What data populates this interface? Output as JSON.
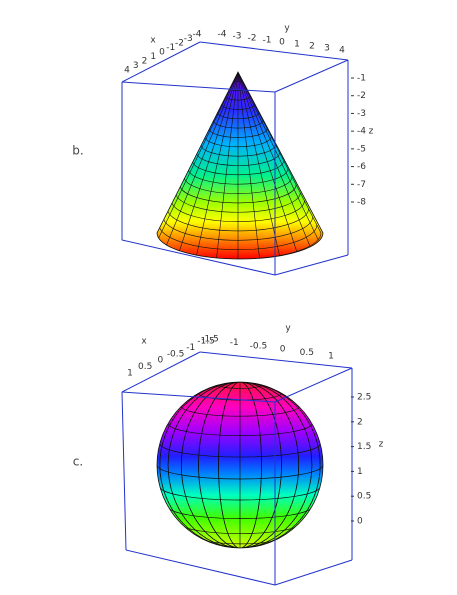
{
  "panels": [
    {
      "label": "b.",
      "x_label": "x",
      "y_label": "y",
      "z_label": "z",
      "x_ticks": [
        4,
        3,
        2,
        1,
        0,
        -1,
        -2,
        -3,
        -4
      ],
      "y_ticks": [
        -4,
        -3,
        -2,
        -1,
        0,
        1,
        2,
        3,
        4
      ],
      "z_ticks": [
        -1,
        -2,
        -3,
        -4,
        -5,
        -6,
        -7,
        -8
      ]
    },
    {
      "label": "c.",
      "x_label": "x",
      "y_label": "y",
      "z_label": "z",
      "x_ticks": [
        1,
        0.5,
        0,
        -0.5,
        -1,
        -1.5
      ],
      "y_ticks": [
        -1.5,
        -1,
        -0.5,
        0,
        0.5,
        1
      ],
      "z_ticks": [
        0,
        0.5,
        1,
        1.5,
        2,
        2.5
      ]
    }
  ]
}
